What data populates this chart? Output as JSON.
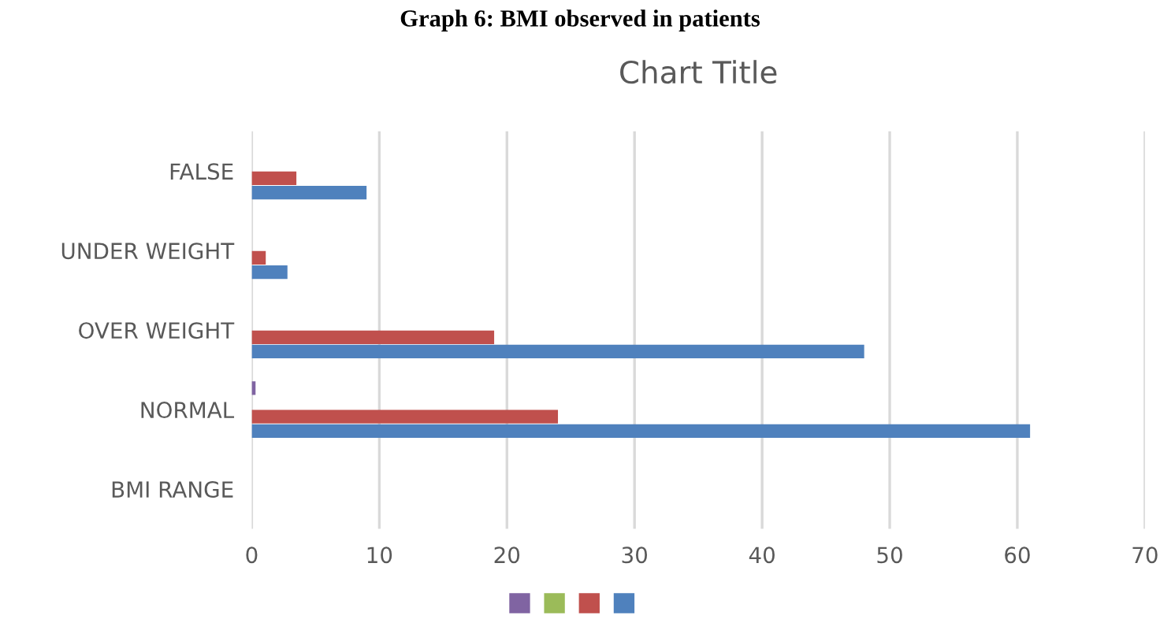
{
  "chart_data": {
    "type": "bar",
    "orientation": "horizontal",
    "title": "Chart Title",
    "annotations": [
      "Graph 6: BMI observed in patients"
    ],
    "categories": [
      "FALSE",
      "UNDER WEIGHT",
      "OVER WEIGHT",
      "NORMAL",
      "BMI RANGE"
    ],
    "series": [
      {
        "color": "#8064a2",
        "values": [
          null,
          null,
          null,
          0.3,
          null
        ]
      },
      {
        "color": "#9bbb59",
        "values": [
          null,
          null,
          null,
          null,
          null
        ]
      },
      {
        "color": "#c0504d",
        "values": [
          3.5,
          1.1,
          19,
          24,
          null
        ]
      },
      {
        "color": "#4f81bd",
        "values": [
          9,
          2.8,
          48,
          61,
          null
        ]
      }
    ],
    "xlim": [
      0,
      70
    ],
    "xticks": [
      0,
      10,
      20,
      30,
      40,
      50,
      60,
      70
    ],
    "grid": "x"
  }
}
